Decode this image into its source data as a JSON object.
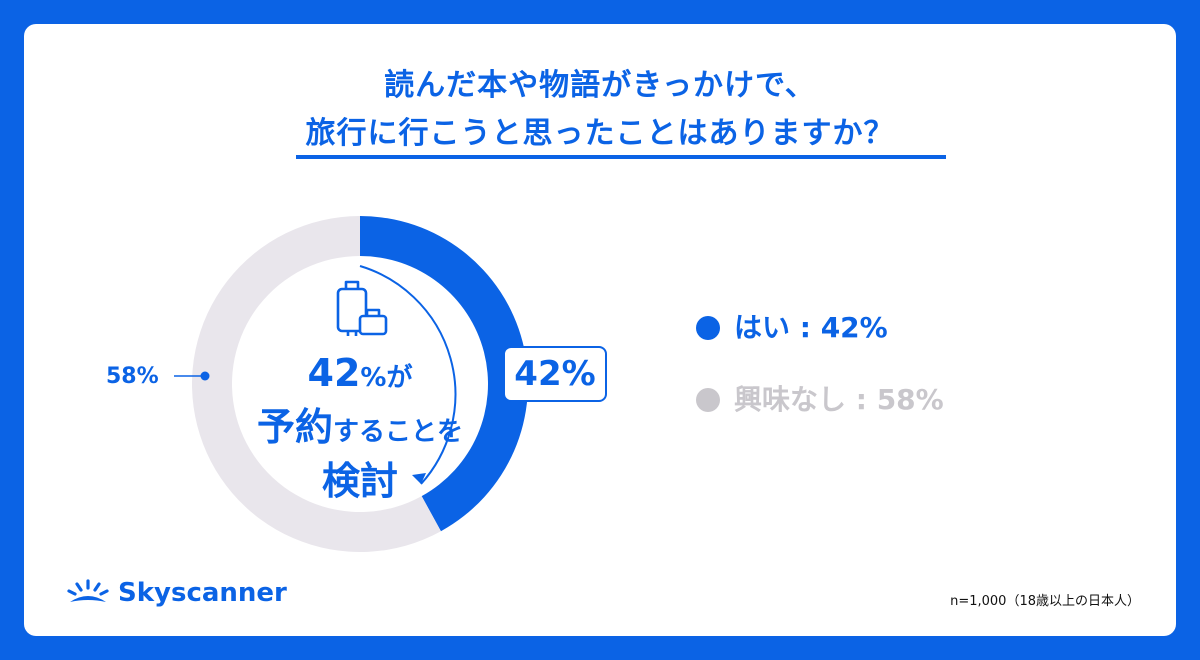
{
  "title": {
    "line1": "読んだ本や物語がきっかけで、",
    "line2": "旅行に行こうと思ったことはありますか？"
  },
  "center": {
    "percent": "42",
    "percent_suffix": "%が",
    "line2_big": "予約",
    "line2_small": "することを",
    "line3": "検討"
  },
  "labels": {
    "yes_value": "42%",
    "no_value": "58%"
  },
  "legend": [
    {
      "label": "はい : 42%",
      "color": "#0b63e5"
    },
    {
      "label": "興味なし : 58%",
      "color": "#c9c7cc"
    }
  ],
  "chart_data": {
    "type": "pie",
    "categories": [
      "はい",
      "興味なし"
    ],
    "values": [
      42,
      58
    ],
    "colors": [
      "#0b63e5",
      "#e9e6ec"
    ],
    "legend_position": "right"
  },
  "brand": {
    "name": "Skyscanner",
    "icon": "sun-rise-icon"
  },
  "footnote": "n=1,000（18歳以上の日本人）"
}
